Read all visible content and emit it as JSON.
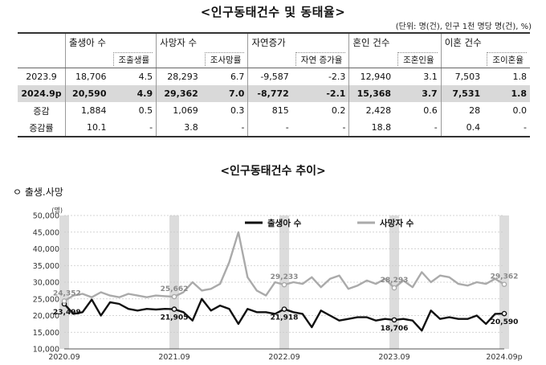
{
  "table": {
    "title": "<인구동태건수 및 동태율>",
    "unit_note": "(단위: 명(건), 인구 1천 명당 명(건), %)",
    "groups": [
      "출생아 수",
      "사망자 수",
      "자연증가",
      "혼인 건수",
      "이혼 건수"
    ],
    "sub_labels": [
      "조출생률",
      "조사망률",
      "자연 증가율",
      "조혼인율",
      "조이혼율"
    ],
    "rows": [
      {
        "label": "2023.9",
        "values": [
          "18,706",
          "4.5",
          "28,293",
          "6.7",
          "-9,587",
          "-2.3",
          "12,940",
          "3.1",
          "7,503",
          "1.8"
        ]
      },
      {
        "label": "2024.9p",
        "values": [
          "20,590",
          "4.9",
          "29,362",
          "7.0",
          "-8,772",
          "-2.1",
          "15,368",
          "3.7",
          "7,531",
          "1.8"
        ]
      },
      {
        "label": "증감",
        "values": [
          "1,884",
          "0.5",
          "1,069",
          "0.3",
          "815",
          "0.2",
          "2,428",
          "0.6",
          "28",
          "0.0"
        ]
      },
      {
        "label": "증감률",
        "values": [
          "10.1",
          "-",
          "3.8",
          "-",
          "-",
          "-",
          "18.8",
          "-",
          "0.4",
          "-"
        ]
      }
    ]
  },
  "chart_title": "<인구동태건수 추이>",
  "section_label": "ㅇ 출생.사망",
  "colors": {
    "births": "#111111",
    "deaths": "#aaaaaa",
    "band": "#dcdcdc",
    "grid": "#c8c8c8"
  },
  "chart_data": {
    "type": "line",
    "y_unit": "(명)",
    "ylim": [
      10000,
      50000
    ],
    "yticks": [
      "10,000",
      "15,000",
      "20,000",
      "25,000",
      "30,000",
      "35,000",
      "40,000",
      "45,000",
      "50,000"
    ],
    "xticks": [
      "2020.09",
      "2021.09",
      "2022.09",
      "2023.09",
      "2024.09p"
    ],
    "grid": true,
    "legend_position": "top-center",
    "highlight_months": [
      0,
      12,
      24,
      36,
      48
    ],
    "series": [
      {
        "name": "출생아 수",
        "values": [
          23499,
          20500,
          21000,
          24800,
          20000,
          24000,
          23500,
          22000,
          21500,
          22000,
          21800,
          22000,
          21905,
          21000,
          18500,
          25000,
          21500,
          23000,
          22000,
          17500,
          22000,
          21000,
          21000,
          20500,
          21918,
          21000,
          20500,
          16500,
          21500,
          20000,
          18500,
          19000,
          19500,
          19500,
          18500,
          19000,
          18706,
          19000,
          18500,
          15500,
          21500,
          19000,
          19500,
          19000,
          19000,
          20000,
          17500,
          20500,
          20590
        ],
        "labels": [
          {
            "index": 0,
            "text": "23,499"
          },
          {
            "index": 12,
            "text": "21,905"
          },
          {
            "index": 24,
            "text": "21,918"
          },
          {
            "index": 36,
            "text": "18,706"
          },
          {
            "index": 48,
            "text": "20,590"
          }
        ]
      },
      {
        "name": "사망자 수",
        "values": [
          24352,
          26000,
          26500,
          25500,
          27000,
          26000,
          25500,
          26500,
          26000,
          25500,
          26000,
          25800,
          25662,
          27000,
          30000,
          27500,
          28000,
          29500,
          36000,
          45000,
          31500,
          27500,
          26000,
          30000,
          29233,
          30000,
          29500,
          31500,
          28500,
          31000,
          32000,
          28000,
          29000,
          30500,
          29500,
          31000,
          28293,
          30500,
          28500,
          33000,
          30000,
          32000,
          31500,
          29500,
          29000,
          30000,
          29500,
          31000,
          29362
        ],
        "labels": [
          {
            "index": 0,
            "text": "24,352"
          },
          {
            "index": 12,
            "text": "25,662"
          },
          {
            "index": 24,
            "text": "29,233"
          },
          {
            "index": 36,
            "text": "28,293"
          },
          {
            "index": 48,
            "text": "29,362"
          }
        ]
      }
    ]
  }
}
